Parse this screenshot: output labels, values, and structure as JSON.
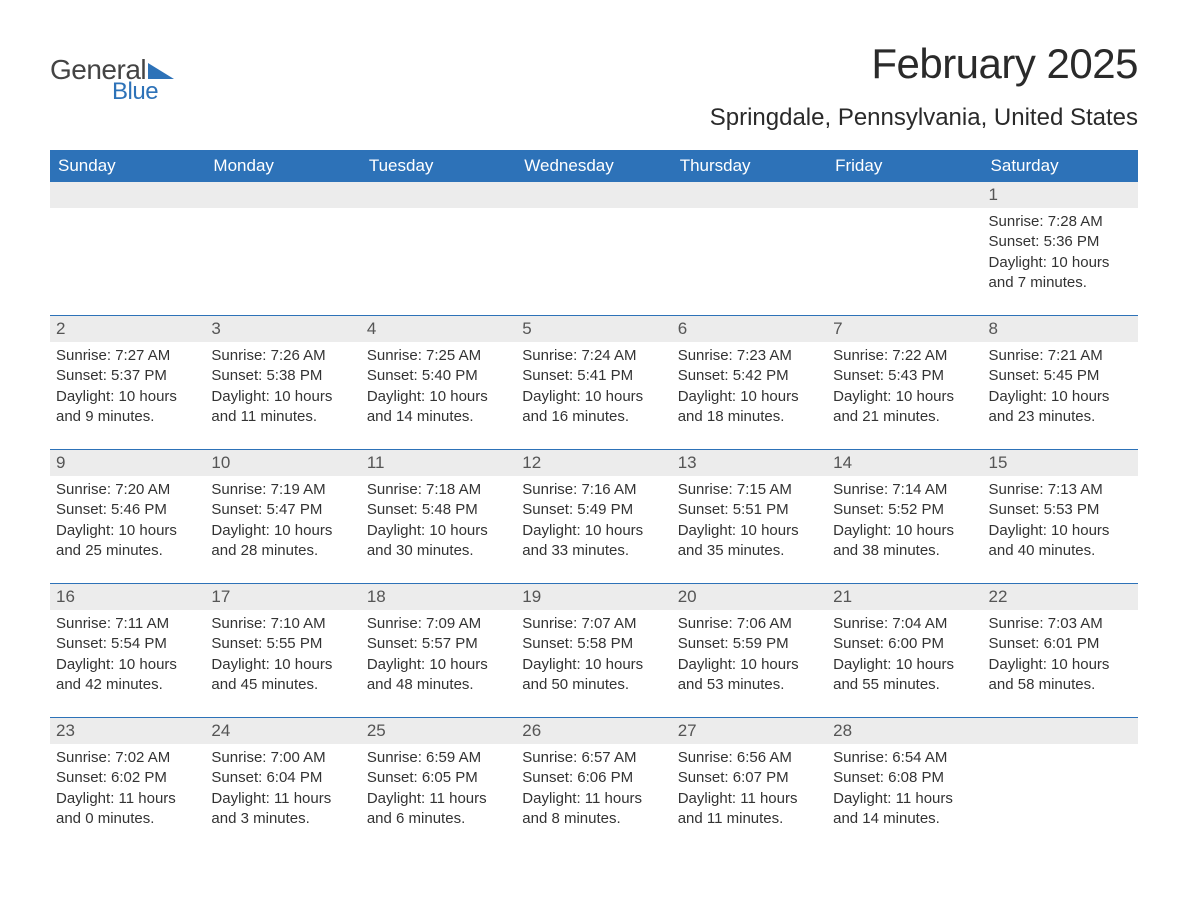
{
  "logo": {
    "text1": "General",
    "text2": "Blue"
  },
  "title": "February 2025",
  "location": "Springdale, Pennsylvania, United States",
  "colors": {
    "header_bg": "#2d72b8",
    "header_text": "#ffffff",
    "daynum_bg": "#ececec",
    "daynum_text": "#555555",
    "body_text": "#333333",
    "rule": "#2d72b8",
    "logo_blue": "#2d72b8",
    "logo_gray": "#444444"
  },
  "weekdays": [
    "Sunday",
    "Monday",
    "Tuesday",
    "Wednesday",
    "Thursday",
    "Friday",
    "Saturday"
  ],
  "weeks": [
    [
      null,
      null,
      null,
      null,
      null,
      null,
      {
        "d": "1",
        "sr": "7:28 AM",
        "ss": "5:36 PM",
        "dl": "10 hours and 7 minutes."
      }
    ],
    [
      {
        "d": "2",
        "sr": "7:27 AM",
        "ss": "5:37 PM",
        "dl": "10 hours and 9 minutes."
      },
      {
        "d": "3",
        "sr": "7:26 AM",
        "ss": "5:38 PM",
        "dl": "10 hours and 11 minutes."
      },
      {
        "d": "4",
        "sr": "7:25 AM",
        "ss": "5:40 PM",
        "dl": "10 hours and 14 minutes."
      },
      {
        "d": "5",
        "sr": "7:24 AM",
        "ss": "5:41 PM",
        "dl": "10 hours and 16 minutes."
      },
      {
        "d": "6",
        "sr": "7:23 AM",
        "ss": "5:42 PM",
        "dl": "10 hours and 18 minutes."
      },
      {
        "d": "7",
        "sr": "7:22 AM",
        "ss": "5:43 PM",
        "dl": "10 hours and 21 minutes."
      },
      {
        "d": "8",
        "sr": "7:21 AM",
        "ss": "5:45 PM",
        "dl": "10 hours and 23 minutes."
      }
    ],
    [
      {
        "d": "9",
        "sr": "7:20 AM",
        "ss": "5:46 PM",
        "dl": "10 hours and 25 minutes."
      },
      {
        "d": "10",
        "sr": "7:19 AM",
        "ss": "5:47 PM",
        "dl": "10 hours and 28 minutes."
      },
      {
        "d": "11",
        "sr": "7:18 AM",
        "ss": "5:48 PM",
        "dl": "10 hours and 30 minutes."
      },
      {
        "d": "12",
        "sr": "7:16 AM",
        "ss": "5:49 PM",
        "dl": "10 hours and 33 minutes."
      },
      {
        "d": "13",
        "sr": "7:15 AM",
        "ss": "5:51 PM",
        "dl": "10 hours and 35 minutes."
      },
      {
        "d": "14",
        "sr": "7:14 AM",
        "ss": "5:52 PM",
        "dl": "10 hours and 38 minutes."
      },
      {
        "d": "15",
        "sr": "7:13 AM",
        "ss": "5:53 PM",
        "dl": "10 hours and 40 minutes."
      }
    ],
    [
      {
        "d": "16",
        "sr": "7:11 AM",
        "ss": "5:54 PM",
        "dl": "10 hours and 42 minutes."
      },
      {
        "d": "17",
        "sr": "7:10 AM",
        "ss": "5:55 PM",
        "dl": "10 hours and 45 minutes."
      },
      {
        "d": "18",
        "sr": "7:09 AM",
        "ss": "5:57 PM",
        "dl": "10 hours and 48 minutes."
      },
      {
        "d": "19",
        "sr": "7:07 AM",
        "ss": "5:58 PM",
        "dl": "10 hours and 50 minutes."
      },
      {
        "d": "20",
        "sr": "7:06 AM",
        "ss": "5:59 PM",
        "dl": "10 hours and 53 minutes."
      },
      {
        "d": "21",
        "sr": "7:04 AM",
        "ss": "6:00 PM",
        "dl": "10 hours and 55 minutes."
      },
      {
        "d": "22",
        "sr": "7:03 AM",
        "ss": "6:01 PM",
        "dl": "10 hours and 58 minutes."
      }
    ],
    [
      {
        "d": "23",
        "sr": "7:02 AM",
        "ss": "6:02 PM",
        "dl": "11 hours and 0 minutes."
      },
      {
        "d": "24",
        "sr": "7:00 AM",
        "ss": "6:04 PM",
        "dl": "11 hours and 3 minutes."
      },
      {
        "d": "25",
        "sr": "6:59 AM",
        "ss": "6:05 PM",
        "dl": "11 hours and 6 minutes."
      },
      {
        "d": "26",
        "sr": "6:57 AM",
        "ss": "6:06 PM",
        "dl": "11 hours and 8 minutes."
      },
      {
        "d": "27",
        "sr": "6:56 AM",
        "ss": "6:07 PM",
        "dl": "11 hours and 11 minutes."
      },
      {
        "d": "28",
        "sr": "6:54 AM",
        "ss": "6:08 PM",
        "dl": "11 hours and 14 minutes."
      },
      null
    ]
  ],
  "labels": {
    "sunrise": "Sunrise: ",
    "sunset": "Sunset: ",
    "daylight": "Daylight: "
  }
}
